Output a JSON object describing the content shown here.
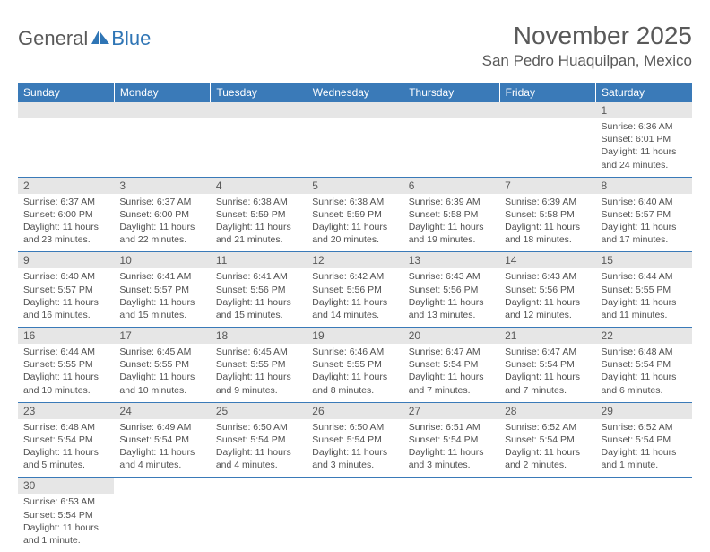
{
  "logo": {
    "general": "General",
    "blue": "Blue"
  },
  "title": {
    "month": "November 2025",
    "location": "San Pedro Huaquilpan, Mexico"
  },
  "colors": {
    "header_bg": "#3a7ab8",
    "header_fg": "#ffffff",
    "daynum_bg": "#e6e6e6",
    "row_border": "#3a7ab8",
    "text": "#505050",
    "title_text": "#595959"
  },
  "dayNames": [
    "Sunday",
    "Monday",
    "Tuesday",
    "Wednesday",
    "Thursday",
    "Friday",
    "Saturday"
  ],
  "weeks": [
    [
      null,
      null,
      null,
      null,
      null,
      null,
      {
        "n": "1",
        "sr": "Sunrise: 6:36 AM",
        "ss": "Sunset: 6:01 PM",
        "dl": "Daylight: 11 hours and 24 minutes."
      }
    ],
    [
      {
        "n": "2",
        "sr": "Sunrise: 6:37 AM",
        "ss": "Sunset: 6:00 PM",
        "dl": "Daylight: 11 hours and 23 minutes."
      },
      {
        "n": "3",
        "sr": "Sunrise: 6:37 AM",
        "ss": "Sunset: 6:00 PM",
        "dl": "Daylight: 11 hours and 22 minutes."
      },
      {
        "n": "4",
        "sr": "Sunrise: 6:38 AM",
        "ss": "Sunset: 5:59 PM",
        "dl": "Daylight: 11 hours and 21 minutes."
      },
      {
        "n": "5",
        "sr": "Sunrise: 6:38 AM",
        "ss": "Sunset: 5:59 PM",
        "dl": "Daylight: 11 hours and 20 minutes."
      },
      {
        "n": "6",
        "sr": "Sunrise: 6:39 AM",
        "ss": "Sunset: 5:58 PM",
        "dl": "Daylight: 11 hours and 19 minutes."
      },
      {
        "n": "7",
        "sr": "Sunrise: 6:39 AM",
        "ss": "Sunset: 5:58 PM",
        "dl": "Daylight: 11 hours and 18 minutes."
      },
      {
        "n": "8",
        "sr": "Sunrise: 6:40 AM",
        "ss": "Sunset: 5:57 PM",
        "dl": "Daylight: 11 hours and 17 minutes."
      }
    ],
    [
      {
        "n": "9",
        "sr": "Sunrise: 6:40 AM",
        "ss": "Sunset: 5:57 PM",
        "dl": "Daylight: 11 hours and 16 minutes."
      },
      {
        "n": "10",
        "sr": "Sunrise: 6:41 AM",
        "ss": "Sunset: 5:57 PM",
        "dl": "Daylight: 11 hours and 15 minutes."
      },
      {
        "n": "11",
        "sr": "Sunrise: 6:41 AM",
        "ss": "Sunset: 5:56 PM",
        "dl": "Daylight: 11 hours and 15 minutes."
      },
      {
        "n": "12",
        "sr": "Sunrise: 6:42 AM",
        "ss": "Sunset: 5:56 PM",
        "dl": "Daylight: 11 hours and 14 minutes."
      },
      {
        "n": "13",
        "sr": "Sunrise: 6:43 AM",
        "ss": "Sunset: 5:56 PM",
        "dl": "Daylight: 11 hours and 13 minutes."
      },
      {
        "n": "14",
        "sr": "Sunrise: 6:43 AM",
        "ss": "Sunset: 5:56 PM",
        "dl": "Daylight: 11 hours and 12 minutes."
      },
      {
        "n": "15",
        "sr": "Sunrise: 6:44 AM",
        "ss": "Sunset: 5:55 PM",
        "dl": "Daylight: 11 hours and 11 minutes."
      }
    ],
    [
      {
        "n": "16",
        "sr": "Sunrise: 6:44 AM",
        "ss": "Sunset: 5:55 PM",
        "dl": "Daylight: 11 hours and 10 minutes."
      },
      {
        "n": "17",
        "sr": "Sunrise: 6:45 AM",
        "ss": "Sunset: 5:55 PM",
        "dl": "Daylight: 11 hours and 10 minutes."
      },
      {
        "n": "18",
        "sr": "Sunrise: 6:45 AM",
        "ss": "Sunset: 5:55 PM",
        "dl": "Daylight: 11 hours and 9 minutes."
      },
      {
        "n": "19",
        "sr": "Sunrise: 6:46 AM",
        "ss": "Sunset: 5:55 PM",
        "dl": "Daylight: 11 hours and 8 minutes."
      },
      {
        "n": "20",
        "sr": "Sunrise: 6:47 AM",
        "ss": "Sunset: 5:54 PM",
        "dl": "Daylight: 11 hours and 7 minutes."
      },
      {
        "n": "21",
        "sr": "Sunrise: 6:47 AM",
        "ss": "Sunset: 5:54 PM",
        "dl": "Daylight: 11 hours and 7 minutes."
      },
      {
        "n": "22",
        "sr": "Sunrise: 6:48 AM",
        "ss": "Sunset: 5:54 PM",
        "dl": "Daylight: 11 hours and 6 minutes."
      }
    ],
    [
      {
        "n": "23",
        "sr": "Sunrise: 6:48 AM",
        "ss": "Sunset: 5:54 PM",
        "dl": "Daylight: 11 hours and 5 minutes."
      },
      {
        "n": "24",
        "sr": "Sunrise: 6:49 AM",
        "ss": "Sunset: 5:54 PM",
        "dl": "Daylight: 11 hours and 4 minutes."
      },
      {
        "n": "25",
        "sr": "Sunrise: 6:50 AM",
        "ss": "Sunset: 5:54 PM",
        "dl": "Daylight: 11 hours and 4 minutes."
      },
      {
        "n": "26",
        "sr": "Sunrise: 6:50 AM",
        "ss": "Sunset: 5:54 PM",
        "dl": "Daylight: 11 hours and 3 minutes."
      },
      {
        "n": "27",
        "sr": "Sunrise: 6:51 AM",
        "ss": "Sunset: 5:54 PM",
        "dl": "Daylight: 11 hours and 3 minutes."
      },
      {
        "n": "28",
        "sr": "Sunrise: 6:52 AM",
        "ss": "Sunset: 5:54 PM",
        "dl": "Daylight: 11 hours and 2 minutes."
      },
      {
        "n": "29",
        "sr": "Sunrise: 6:52 AM",
        "ss": "Sunset: 5:54 PM",
        "dl": "Daylight: 11 hours and 1 minute."
      }
    ],
    [
      {
        "n": "30",
        "sr": "Sunrise: 6:53 AM",
        "ss": "Sunset: 5:54 PM",
        "dl": "Daylight: 11 hours and 1 minute."
      },
      null,
      null,
      null,
      null,
      null,
      null
    ]
  ]
}
